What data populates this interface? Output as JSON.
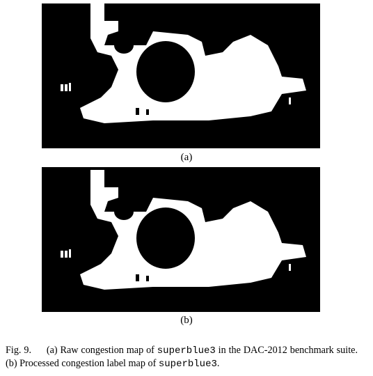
{
  "figure": {
    "panels": [
      {
        "label": "(a)"
      },
      {
        "label": "(b)"
      }
    ],
    "caption": {
      "label": "Fig. 9.",
      "segments": [
        {
          "text": "(a) Raw congestion map of ",
          "code": false
        },
        {
          "text": "superblue3",
          "code": true
        },
        {
          "text": " in the DAC-2012 benchmark suite. (b) Processed congestion label map of ",
          "code": false
        },
        {
          "text": "superblue3",
          "code": true
        },
        {
          "text": ".",
          "code": false
        }
      ]
    }
  }
}
